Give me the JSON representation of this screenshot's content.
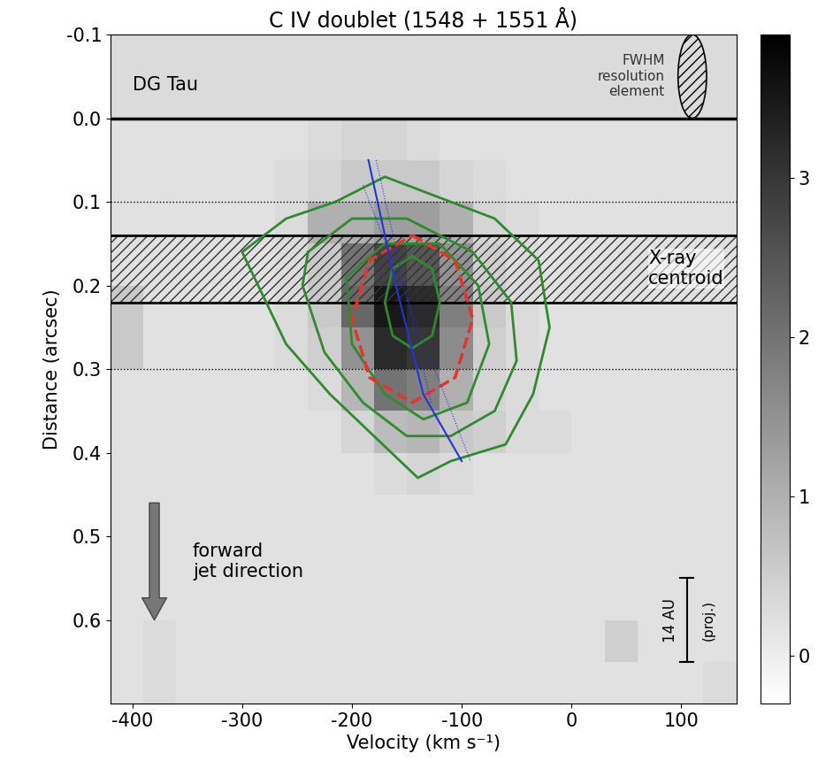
{
  "chart_data": {
    "type": "heatmap",
    "title": "C IV doublet (1548 + 1551 Å)",
    "x_label": "Velocity (km s⁻¹)",
    "y_label": "Distance (arcsec)",
    "xlim": [
      -420,
      150
    ],
    "ylim": [
      0.7,
      -0.1
    ],
    "xticks": [
      -400,
      -300,
      -200,
      -100,
      0,
      100
    ],
    "yticks": [
      -0.1,
      0.0,
      0.1,
      0.2,
      0.3,
      0.4,
      0.5,
      0.6
    ],
    "x_edges": [
      -420,
      -390,
      -360,
      -330,
      -300,
      -270,
      -240,
      -210,
      -180,
      -150,
      -120,
      -90,
      -60,
      -30,
      0,
      30,
      60,
      90,
      120,
      150
    ],
    "y_edges": [
      -0.1,
      -0.05,
      0.0,
      0.05,
      0.1,
      0.15,
      0.2,
      0.25,
      0.3,
      0.35,
      0.4,
      0.45,
      0.5,
      0.55,
      0.6,
      0.65,
      0.7
    ],
    "cells": [
      [
        0.3,
        0.3,
        0.3,
        0.3,
        0.3,
        0.3,
        0.3,
        0.3,
        0.3,
        0.3,
        0.3,
        0.3,
        0.3,
        0.3,
        0.3,
        0.3,
        0.3,
        0.3,
        0.3
      ],
      [
        0.3,
        0.3,
        0.3,
        0.3,
        0.3,
        0.3,
        0.3,
        0.3,
        0.3,
        0.3,
        0.3,
        0.3,
        0.3,
        0.3,
        0.3,
        0.3,
        0.3,
        0.3,
        0.3
      ],
      [
        0.2,
        0.2,
        0.2,
        0.2,
        0.2,
        0.2,
        0.3,
        0.4,
        0.4,
        0.3,
        0.2,
        0.2,
        0.2,
        0.2,
        0.2,
        0.2,
        0.2,
        0.2,
        0.2
      ],
      [
        0.2,
        0.2,
        0.2,
        0.2,
        0.2,
        0.3,
        0.4,
        0.6,
        0.6,
        0.6,
        0.4,
        0.3,
        0.2,
        0.2,
        0.2,
        0.2,
        0.2,
        0.2,
        0.2
      ],
      [
        0.2,
        0.2,
        0.2,
        0.2,
        0.2,
        0.3,
        1.0,
        1.0,
        1.3,
        1.3,
        1.0,
        0.4,
        0.3,
        0.2,
        0.2,
        0.2,
        0.2,
        0.2,
        0.2
      ],
      [
        0.2,
        0.2,
        0.2,
        0.2,
        0.2,
        0.3,
        0.6,
        2.0,
        2.8,
        2.5,
        1.5,
        0.5,
        0.3,
        0.2,
        0.2,
        0.2,
        0.2,
        0.2,
        0.2
      ],
      [
        0.6,
        0.2,
        0.2,
        0.2,
        0.2,
        0.3,
        0.6,
        2.2,
        3.5,
        3.2,
        1.8,
        0.6,
        0.3,
        0.2,
        0.2,
        0.2,
        0.2,
        0.2,
        0.2
      ],
      [
        0.6,
        0.2,
        0.2,
        0.2,
        0.2,
        0.3,
        0.5,
        1.5,
        3.2,
        3.0,
        1.6,
        0.5,
        0.3,
        0.2,
        0.2,
        0.2,
        0.2,
        0.2,
        0.2
      ],
      [
        0.2,
        0.2,
        0.2,
        0.2,
        0.2,
        0.2,
        0.3,
        0.9,
        2.0,
        1.8,
        1.0,
        0.4,
        0.3,
        0.2,
        0.2,
        0.2,
        0.2,
        0.2,
        0.2
      ],
      [
        0.2,
        0.2,
        0.2,
        0.2,
        0.2,
        0.2,
        0.2,
        0.4,
        0.8,
        0.9,
        0.6,
        0.5,
        0.3,
        0.3,
        0.2,
        0.2,
        0.2,
        0.2,
        0.2
      ],
      [
        0.2,
        0.2,
        0.2,
        0.2,
        0.2,
        0.2,
        0.2,
        0.2,
        0.3,
        0.4,
        0.3,
        0.2,
        0.2,
        0.2,
        0.2,
        0.2,
        0.2,
        0.2,
        0.2
      ],
      [
        0.2,
        0.2,
        0.2,
        0.2,
        0.2,
        0.2,
        0.2,
        0.2,
        0.2,
        0.2,
        0.2,
        0.2,
        0.2,
        0.2,
        0.2,
        0.2,
        0.2,
        0.2,
        0.2
      ],
      [
        0.2,
        0.2,
        0.2,
        0.2,
        0.2,
        0.2,
        0.2,
        0.2,
        0.2,
        0.2,
        0.2,
        0.2,
        0.2,
        0.2,
        0.2,
        0.2,
        0.2,
        0.2,
        0.2
      ],
      [
        0.2,
        0.2,
        0.2,
        0.2,
        0.2,
        0.2,
        0.2,
        0.2,
        0.2,
        0.2,
        0.2,
        0.2,
        0.2,
        0.2,
        0.2,
        0.2,
        0.2,
        0.2,
        0.2
      ],
      [
        0.2,
        0.3,
        0.2,
        0.2,
        0.2,
        0.2,
        0.2,
        0.2,
        0.2,
        0.2,
        0.2,
        0.2,
        0.2,
        0.2,
        0.2,
        0.5,
        0.2,
        0.2,
        0.2
      ],
      [
        0.2,
        0.3,
        0.2,
        0.2,
        0.2,
        0.2,
        0.2,
        0.2,
        0.2,
        0.2,
        0.2,
        0.2,
        0.2,
        0.2,
        0.2,
        0.2,
        0.2,
        0.2,
        0.3
      ]
    ],
    "colorbar": {
      "range": [
        -0.3,
        3.9
      ],
      "ticks": [
        0,
        1,
        2,
        3
      ]
    },
    "contours": [
      [
        [
          -215,
          0.1
        ],
        [
          -170,
          0.07
        ],
        [
          -130,
          0.09
        ],
        [
          -70,
          0.12
        ],
        [
          -30,
          0.17
        ],
        [
          -20,
          0.25
        ],
        [
          -35,
          0.33
        ],
        [
          -60,
          0.39
        ],
        [
          -110,
          0.41
        ],
        [
          -140,
          0.43
        ],
        [
          -180,
          0.38
        ],
        [
          -220,
          0.33
        ],
        [
          -260,
          0.27
        ],
        [
          -300,
          0.16
        ],
        [
          -260,
          0.12
        ],
        [
          -215,
          0.1
        ]
      ],
      [
        [
          -240,
          0.16
        ],
        [
          -200,
          0.12
        ],
        [
          -150,
          0.12
        ],
        [
          -90,
          0.16
        ],
        [
          -55,
          0.22
        ],
        [
          -50,
          0.29
        ],
        [
          -70,
          0.35
        ],
        [
          -110,
          0.38
        ],
        [
          -150,
          0.38
        ],
        [
          -190,
          0.34
        ],
        [
          -225,
          0.28
        ],
        [
          -245,
          0.2
        ],
        [
          -240,
          0.16
        ]
      ],
      [
        [
          -205,
          0.19
        ],
        [
          -170,
          0.15
        ],
        [
          -120,
          0.15
        ],
        [
          -85,
          0.2
        ],
        [
          -75,
          0.27
        ],
        [
          -95,
          0.34
        ],
        [
          -135,
          0.36
        ],
        [
          -170,
          0.33
        ],
        [
          -200,
          0.27
        ],
        [
          -205,
          0.19
        ]
      ],
      [
        [
          -145,
          0.165
        ],
        [
          -127,
          0.18
        ],
        [
          -120,
          0.22
        ],
        [
          -127,
          0.26
        ],
        [
          -145,
          0.275
        ],
        [
          -163,
          0.26
        ],
        [
          -170,
          0.22
        ],
        [
          -163,
          0.18
        ],
        [
          -145,
          0.165
        ]
      ]
    ],
    "contour_color": "#2e8b2e",
    "dashed_contour": [
      [
        -145,
        0.14
      ],
      [
        -106,
        0.17
      ],
      [
        -90,
        0.24
      ],
      [
        -106,
        0.31
      ],
      [
        -145,
        0.34
      ],
      [
        -184,
        0.31
      ],
      [
        -200,
        0.24
      ],
      [
        -184,
        0.17
      ],
      [
        -145,
        0.14
      ]
    ],
    "dashed_color": "#e8322a",
    "fit_line": [
      [
        -185,
        0.05
      ],
      [
        -160,
        0.2
      ],
      [
        -135,
        0.33
      ],
      [
        -100,
        0.41
      ]
    ],
    "fit_bounds": [
      [
        [
          -178,
          0.05
        ],
        [
          -128,
          0.34
        ]
      ],
      [
        [
          -190,
          0.08
        ],
        [
          -92,
          0.41
        ]
      ]
    ],
    "fit_color": "#2233dd",
    "star_line": 0.0,
    "dotted_lines": [
      0.1,
      0.3
    ],
    "xray_band": [
      0.14,
      0.22
    ],
    "annotations": {
      "star": {
        "text": "DG Tau",
        "x": -400,
        "y": -0.04
      },
      "resolution": {
        "text": "FWHM\nresolution\nelement",
        "x": 85,
        "y": -0.05
      },
      "xray": {
        "text": "X-ray\ncentroid",
        "x": 70,
        "y": 0.18
      },
      "jet": {
        "text": "forward\njet direction",
        "x": -345,
        "y": 0.53
      },
      "scale": {
        "text": "14 AU",
        "x": 90,
        "y": 0.6
      },
      "scale_note": {
        "text": "(proj.)",
        "x": 125,
        "y": 0.6
      }
    },
    "resolution_element": {
      "velocity": 110,
      "distance": -0.05,
      "width": 26,
      "height": 0.1
    },
    "jet_arrow": {
      "velocity": -380,
      "from": 0.46,
      "to": 0.6
    },
    "scale_bar": {
      "velocity": 105,
      "from": 0.55,
      "to": 0.65
    }
  }
}
